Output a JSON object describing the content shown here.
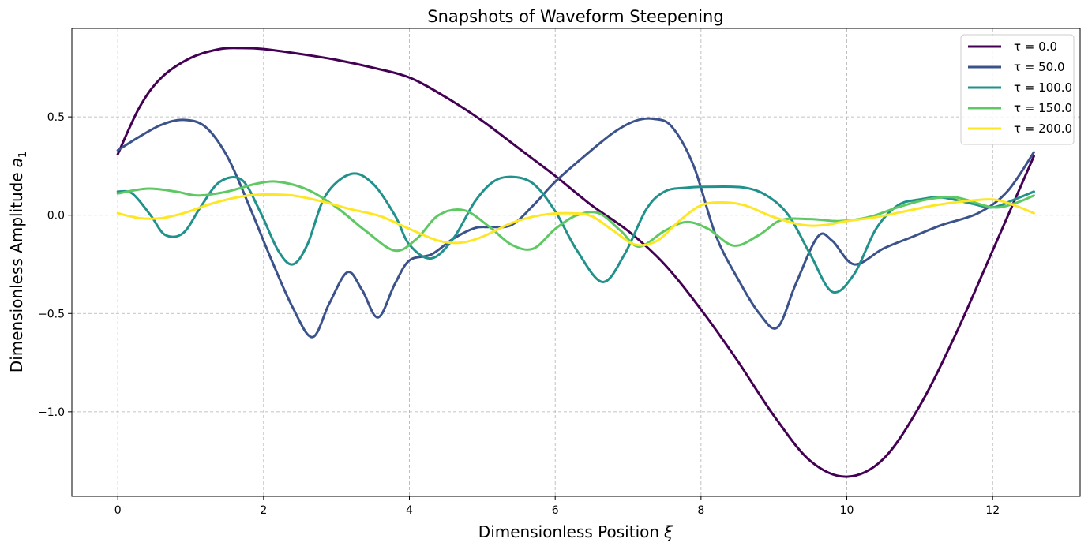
{
  "chart_data": {
    "type": "line",
    "title": "Snapshots of Waveform Steepening",
    "xlabel": "Dimensionless Position",
    "xlabel_symbol": "ξ",
    "ylabel": "Dimensionless Amplitude",
    "ylabel_symbol": "a",
    "ylabel_subscript": "1",
    "xlim": [
      -0.63,
      13.2
    ],
    "ylim": [
      -1.43,
      0.95
    ],
    "xticks": [
      0,
      2,
      4,
      6,
      8,
      10,
      12
    ],
    "xtick_labels": [
      "0",
      "2",
      "4",
      "6",
      "8",
      "10",
      "12"
    ],
    "yticks": [
      -1.0,
      -0.5,
      0.0,
      0.5
    ],
    "ytick_labels": [
      "−1.0",
      "−0.5",
      "0.0",
      "0.5"
    ],
    "grid": true,
    "legend_position": "top-right",
    "series": [
      {
        "name": "τ = 0.0",
        "color": "#440154",
        "x": [
          0,
          0.3,
          0.6,
          1.0,
          1.4,
          1.7,
          2.0,
          2.5,
          3.0,
          3.5,
          4.0,
          4.5,
          5.0,
          5.5,
          6.0,
          6.5,
          7.0,
          7.5,
          8.0,
          8.5,
          9.0,
          9.5,
          10.0,
          10.5,
          11.0,
          11.5,
          12.0,
          12.566
        ],
        "y": [
          0.31,
          0.55,
          0.7,
          0.8,
          0.845,
          0.85,
          0.845,
          0.82,
          0.79,
          0.75,
          0.7,
          0.6,
          0.48,
          0.34,
          0.2,
          0.05,
          -0.08,
          -0.25,
          -0.48,
          -0.74,
          -1.02,
          -1.25,
          -1.33,
          -1.24,
          -0.97,
          -0.6,
          -0.18,
          0.3
        ]
      },
      {
        "name": "τ = 50.0",
        "color": "#3b528b",
        "x": [
          0,
          0.3,
          0.6,
          0.9,
          1.2,
          1.5,
          1.8,
          2.1,
          2.4,
          2.67,
          2.9,
          3.15,
          3.35,
          3.57,
          3.8,
          4.0,
          4.3,
          4.6,
          4.9,
          5.1,
          5.4,
          5.7,
          6.0,
          6.4,
          6.8,
          7.1,
          7.35,
          7.6,
          7.9,
          8.2,
          8.5,
          8.8,
          9.05,
          9.3,
          9.6,
          9.8,
          10.1,
          10.5,
          10.9,
          11.3,
          11.8,
          12.2,
          12.566
        ],
        "y": [
          0.33,
          0.4,
          0.46,
          0.485,
          0.45,
          0.3,
          0.05,
          -0.22,
          -0.47,
          -0.62,
          -0.45,
          -0.29,
          -0.38,
          -0.52,
          -0.35,
          -0.23,
          -0.2,
          -0.12,
          -0.065,
          -0.06,
          -0.05,
          0.05,
          0.17,
          0.3,
          0.42,
          0.48,
          0.49,
          0.45,
          0.25,
          -0.1,
          -0.32,
          -0.5,
          -0.57,
          -0.35,
          -0.11,
          -0.13,
          -0.25,
          -0.17,
          -0.11,
          -0.05,
          0.01,
          0.12,
          0.32
        ]
      },
      {
        "name": "τ = 100.0",
        "color": "#21918c",
        "x": [
          0,
          0.2,
          0.45,
          0.65,
          0.9,
          1.15,
          1.4,
          1.7,
          1.95,
          2.2,
          2.4,
          2.6,
          2.85,
          3.2,
          3.5,
          3.8,
          4.0,
          4.3,
          4.6,
          4.9,
          5.15,
          5.4,
          5.7,
          6.0,
          6.3,
          6.65,
          6.95,
          7.25,
          7.5,
          7.8,
          8.2,
          8.6,
          8.9,
          9.2,
          9.5,
          9.8,
          10.1,
          10.4,
          10.7,
          11.0,
          11.3,
          11.7,
          12.0,
          12.3,
          12.566
        ],
        "y": [
          0.12,
          0.11,
          0.0,
          -0.1,
          -0.09,
          0.05,
          0.17,
          0.18,
          0.02,
          -0.18,
          -0.25,
          -0.15,
          0.1,
          0.21,
          0.16,
          0.0,
          -0.15,
          -0.22,
          -0.12,
          0.07,
          0.17,
          0.195,
          0.16,
          0.02,
          -0.18,
          -0.34,
          -0.2,
          0.03,
          0.12,
          0.14,
          0.145,
          0.14,
          0.1,
          0.0,
          -0.2,
          -0.39,
          -0.3,
          -0.07,
          0.05,
          0.08,
          0.09,
          0.06,
          0.04,
          0.08,
          0.12
        ]
      },
      {
        "name": "τ = 150.0",
        "color": "#5ec962",
        "x": [
          0,
          0.4,
          0.8,
          1.1,
          1.5,
          1.9,
          2.2,
          2.6,
          3.0,
          3.4,
          3.8,
          4.1,
          4.4,
          4.75,
          5.1,
          5.4,
          5.7,
          6.0,
          6.3,
          6.6,
          6.9,
          7.15,
          7.5,
          7.8,
          8.1,
          8.45,
          8.8,
          9.1,
          9.5,
          9.9,
          10.3,
          10.7,
          11.1,
          11.5,
          12.0,
          12.3,
          12.566
        ],
        "y": [
          0.11,
          0.135,
          0.12,
          0.1,
          0.12,
          0.16,
          0.17,
          0.13,
          0.04,
          -0.08,
          -0.18,
          -0.12,
          0.0,
          0.025,
          -0.06,
          -0.15,
          -0.17,
          -0.07,
          0.0,
          0.01,
          -0.08,
          -0.16,
          -0.08,
          -0.035,
          -0.07,
          -0.155,
          -0.1,
          -0.025,
          -0.02,
          -0.03,
          -0.01,
          0.04,
          0.08,
          0.09,
          0.04,
          0.06,
          0.1
        ]
      },
      {
        "name": "τ = 200.0",
        "color": "#fde725",
        "x": [
          0,
          0.3,
          0.6,
          0.9,
          1.3,
          1.7,
          2.0,
          2.4,
          2.8,
          3.2,
          3.6,
          4.0,
          4.4,
          4.7,
          5.0,
          5.4,
          5.8,
          6.2,
          6.5,
          6.8,
          7.1,
          7.4,
          7.7,
          8.0,
          8.3,
          8.6,
          9.0,
          9.4,
          9.7,
          10.0,
          10.4,
          10.8,
          11.2,
          11.6,
          12.0,
          12.3,
          12.566
        ],
        "y": [
          0.01,
          -0.015,
          -0.015,
          0.01,
          0.06,
          0.095,
          0.105,
          0.1,
          0.07,
          0.03,
          -0.005,
          -0.07,
          -0.13,
          -0.14,
          -0.11,
          -0.04,
          0.0,
          0.01,
          -0.005,
          -0.08,
          -0.15,
          -0.13,
          -0.03,
          0.05,
          0.065,
          0.05,
          -0.01,
          -0.05,
          -0.05,
          -0.03,
          -0.01,
          0.02,
          0.05,
          0.07,
          0.08,
          0.05,
          0.01
        ]
      }
    ]
  }
}
